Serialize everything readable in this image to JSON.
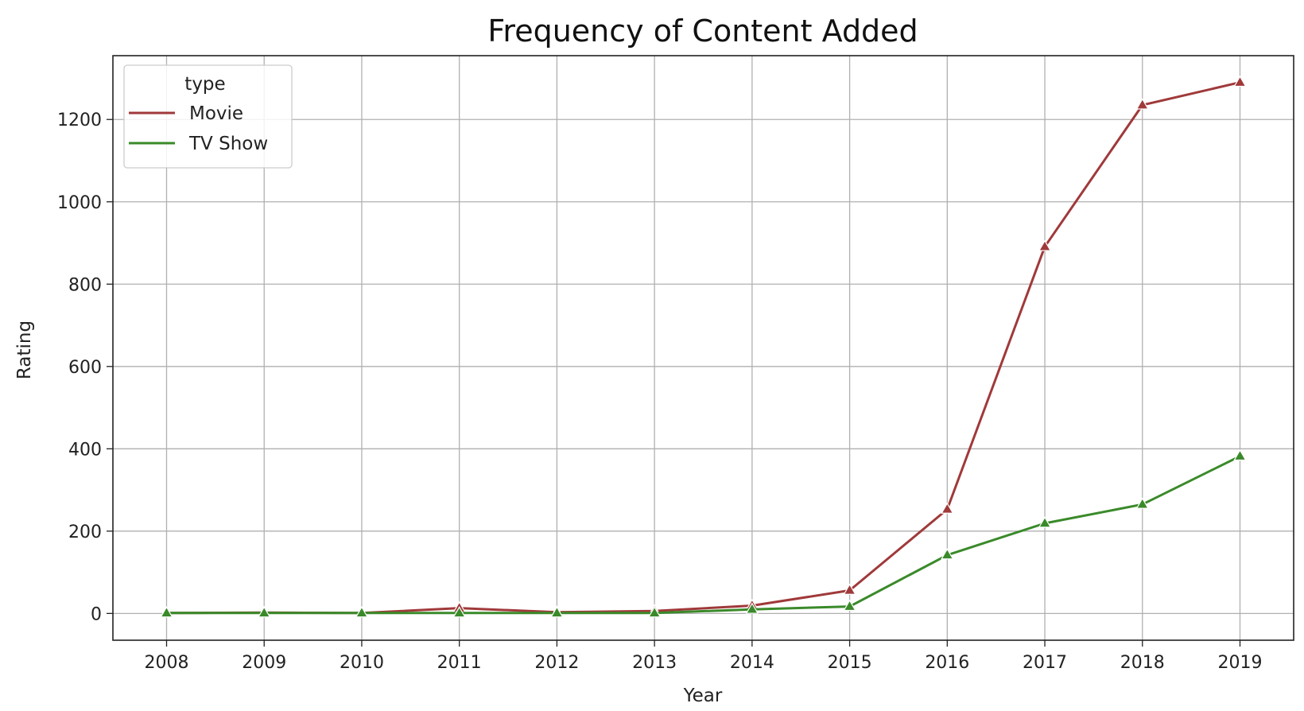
{
  "chart_data": {
    "type": "line",
    "title": "Frequency of Content Added",
    "xlabel": "Year",
    "ylabel": "Rating",
    "x": [
      2008,
      2009,
      2010,
      2011,
      2012,
      2013,
      2014,
      2015,
      2016,
      2017,
      2018,
      2019
    ],
    "x_tick_labels": [
      "2008",
      "2009",
      "2010",
      "2011",
      "2012",
      "2013",
      "2014",
      "2015",
      "2016",
      "2017",
      "2018",
      "2019"
    ],
    "xlim": [
      2007.45,
      2019.55
    ],
    "ylim": [
      -65,
      1355
    ],
    "y_ticks": [
      0,
      200,
      400,
      600,
      800,
      1000,
      1200
    ],
    "y_tick_labels": [
      "0",
      "200",
      "400",
      "600",
      "800",
      "1000",
      "1200"
    ],
    "grid": true,
    "legend": {
      "title": "type",
      "position": "top-left"
    },
    "series": [
      {
        "name": "Movie",
        "color": "#a0393a",
        "marker": "triangle",
        "values": [
          1,
          2,
          1,
          13,
          3,
          6,
          19,
          56,
          253,
          891,
          1235,
          1290
        ]
      },
      {
        "name": "TV Show",
        "color": "#3a8a2a",
        "marker": "triangle",
        "values": [
          1,
          1,
          1,
          1,
          1,
          1,
          10,
          17,
          142,
          219,
          265,
          382
        ]
      }
    ]
  }
}
